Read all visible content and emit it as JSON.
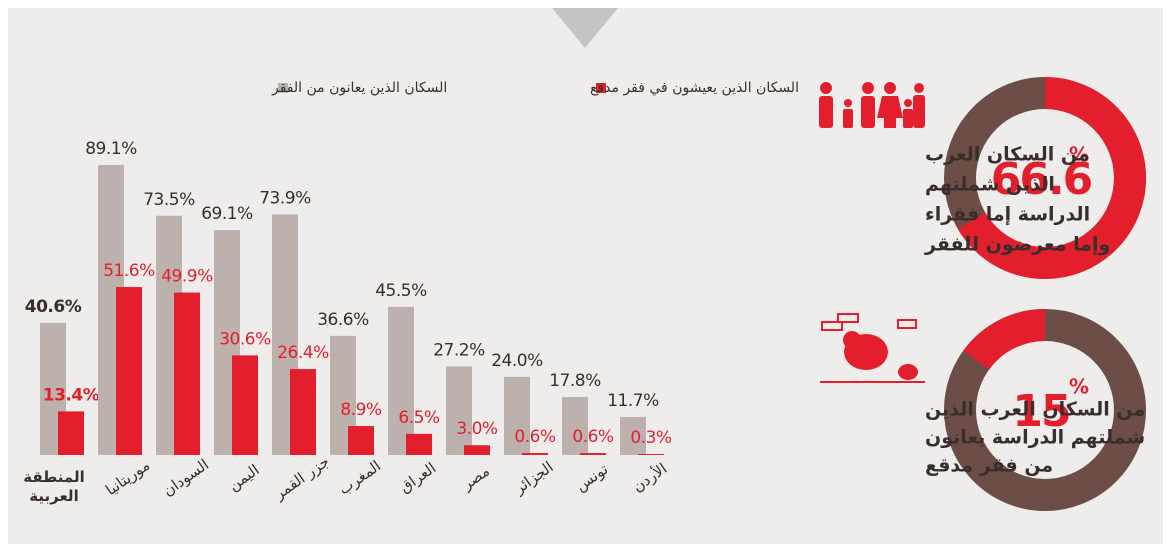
{
  "chart_data": [
    {
      "type": "bar",
      "categories": [
        "المنطقة العربية",
        "موريتانيا",
        "السودان",
        "اليمن",
        "جزر القمر",
        "المغرب",
        "العراق",
        "مصر",
        "الجزائر",
        "تونس",
        "الأردن"
      ],
      "series": [
        {
          "name": "السكان الذين يعانون من الفقر",
          "color": "#bdb1ae",
          "values": [
            40.6,
            89.1,
            73.5,
            69.1,
            73.9,
            36.6,
            45.5,
            27.2,
            24.0,
            17.8,
            11.7
          ],
          "value_labels": [
            "40.6%",
            "89.1%",
            "73.5%",
            "69.1%",
            "73.9%",
            "36.6%",
            "45.5%",
            "27.2%",
            "24.0%",
            "17.8%",
            "11.7%"
          ]
        },
        {
          "name": "السكان الذين يعيشون في فقر مدقع",
          "color": "#e41f2d",
          "values": [
            13.4,
            51.6,
            49.9,
            30.6,
            26.4,
            8.9,
            6.5,
            3.0,
            0.6,
            0.6,
            0.3
          ],
          "value_labels": [
            "13.4%",
            "51.6%",
            "49.9%",
            "30.6%",
            "26.4%",
            "8.9%",
            "6.5%",
            "3.0%",
            "0.6%",
            "0.6%",
            "0.3%"
          ]
        }
      ]
    },
    {
      "type": "donut",
      "value": 66.6,
      "value_label": "66.6",
      "unit": "%",
      "color": "#e41f2d",
      "track_color": "#6d4d47",
      "caption": [
        "من السكان العرب",
        "الذين شملتهم",
        "الدراسة إما فقراء",
        "وإما معرضون للفقر"
      ]
    },
    {
      "type": "donut",
      "value": 15,
      "value_label": "15",
      "unit": "%",
      "color": "#e41f2d",
      "track_color": "#6d4d47",
      "caption": [
        "من السكان العرب الذين",
        "شملتهم الدراسة يعانون",
        "من فقر مدقع"
      ]
    }
  ]
}
